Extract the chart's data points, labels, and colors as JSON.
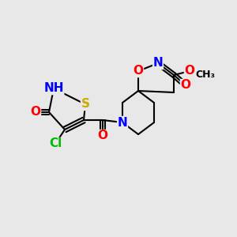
{
  "bg_color": "#e8e8e8",
  "bond_color": "#000000",
  "atom_colors": {
    "O": "#ff0000",
    "N": "#0000ff",
    "S": "#ccaa00",
    "Cl": "#00bb00",
    "C": "#000000",
    "H": "#00aaaa"
  },
  "font_size_atoms": 11,
  "font_size_small": 9
}
